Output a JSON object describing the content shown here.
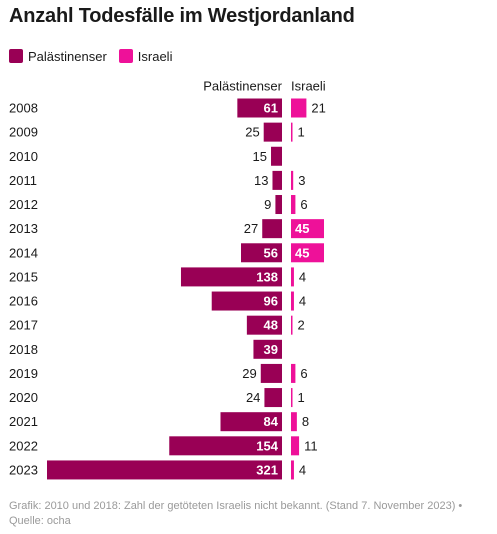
{
  "title": "Anzahl Todesfälle im Westjordanland",
  "colors": {
    "palestinians": "#990055",
    "israelis": "#ee1199",
    "label_dark": "#1a1a1a",
    "label_light": "#ffffff"
  },
  "legend": [
    {
      "label": "Palästinenser",
      "color": "#990055"
    },
    {
      "label": "Israeli",
      "color": "#ee1199"
    }
  ],
  "chart_data": {
    "type": "bar",
    "orientation": "horizontal",
    "categories": [
      "2008",
      "2009",
      "2010",
      "2011",
      "2012",
      "2013",
      "2014",
      "2015",
      "2016",
      "2017",
      "2018",
      "2019",
      "2020",
      "2021",
      "2022",
      "2023"
    ],
    "series": [
      {
        "name": "Palästinenser",
        "values": [
          61,
          25,
          15,
          13,
          9,
          27,
          56,
          138,
          96,
          48,
          39,
          29,
          24,
          84,
          154,
          321
        ]
      },
      {
        "name": "Israeli",
        "values": [
          21,
          1,
          null,
          3,
          6,
          45,
          45,
          4,
          4,
          2,
          null,
          6,
          1,
          8,
          11,
          4
        ]
      }
    ]
  },
  "footer": {
    "line1": "Grafik: 2010 und 2018: Zahl der getöteten Israelis nicht bekannt. (Stand 7. November 2023) •",
    "line2": "Quelle: ocha"
  }
}
